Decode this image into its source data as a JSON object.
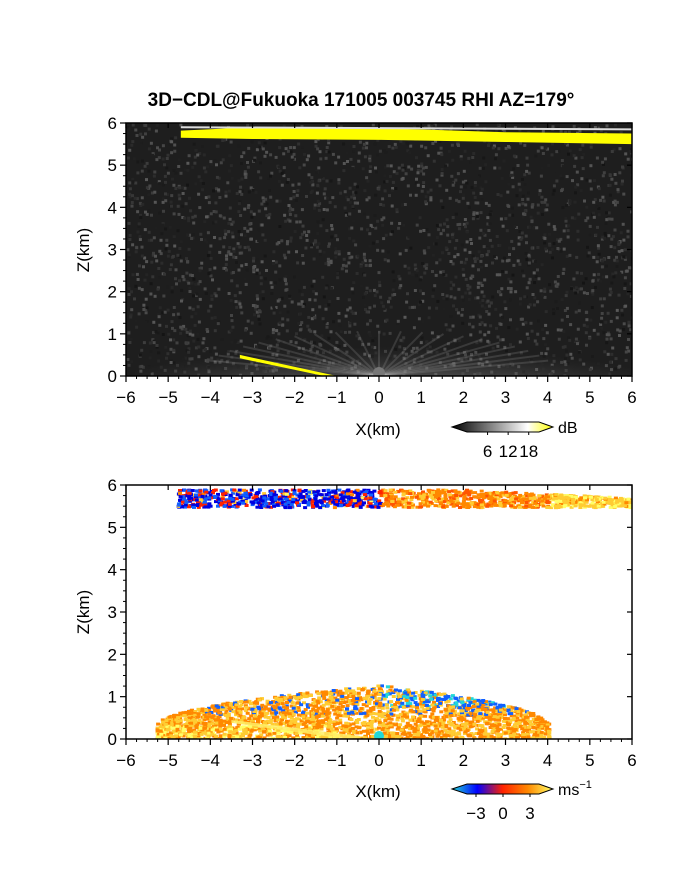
{
  "title": "3D−CDL@Fukuoka 171005 003745 RHI AZ=179°",
  "chart_data": [
    {
      "type": "heatmap",
      "panel": "reflectivity",
      "xlabel": "X(km)",
      "ylabel": "Z(km)",
      "xlim": [
        -6,
        6
      ],
      "ylim": [
        0,
        6
      ],
      "xticks": [
        "−6",
        "−5",
        "−4",
        "−3",
        "−2",
        "−1",
        "0",
        "1",
        "2",
        "3",
        "4",
        "5",
        "6"
      ],
      "yticks": [
        "0",
        "1",
        "2",
        "3",
        "4",
        "5",
        "6"
      ],
      "colorbar": {
        "unit": "dB",
        "ticks": [
          "6",
          "12",
          "18"
        ],
        "range": [
          0,
          21
        ],
        "colors": [
          "#000000",
          "#555555",
          "#aaaaaa",
          "#ffffff",
          "#ffff00"
        ]
      },
      "features": [
        {
          "name": "cloud base echo",
          "z_km": [
            5.5,
            5.9
          ],
          "x_km": [
            -4.7,
            6
          ],
          "value_db": 20
        },
        {
          "name": "boundary layer aerosol",
          "z_km": [
            0,
            1.4
          ],
          "x_km": [
            -6,
            6
          ],
          "value_db": 10
        },
        {
          "name": "ground clutter",
          "x_km": [
            -3.3,
            -1.0
          ],
          "z_km": [
            0,
            0.5
          ],
          "value_db": 20
        }
      ]
    },
    {
      "type": "heatmap",
      "panel": "doppler velocity",
      "xlabel": "X(km)",
      "ylabel": "Z(km)",
      "xlim": [
        -6,
        6
      ],
      "ylim": [
        0,
        6
      ],
      "xticks": [
        "−6",
        "−5",
        "−4",
        "−3",
        "−2",
        "−1",
        "0",
        "1",
        "2",
        "3",
        "4",
        "5",
        "6"
      ],
      "yticks": [
        "0",
        "1",
        "2",
        "3",
        "4",
        "5",
        "6"
      ],
      "colorbar": {
        "unit": "ms",
        "unit_sup": "−1",
        "ticks": [
          "−3",
          "0",
          "3"
        ],
        "range": [
          -4,
          4
        ],
        "colors": [
          "#22d8d8",
          "#0000ff",
          "#ff2200",
          "#ff8800",
          "#ffff66"
        ]
      },
      "features": [
        {
          "name": "cloud base velocity",
          "z_km": [
            5.5,
            5.9
          ],
          "x_km": [
            -4.8,
            6
          ],
          "velocity_left_ms": -2,
          "velocity_right_ms": 2
        },
        {
          "name": "boundary layer velocity",
          "z_km": [
            0,
            1.3
          ],
          "x_km": [
            -5.3,
            4
          ],
          "velocity_ms": 1.5
        }
      ]
    }
  ]
}
